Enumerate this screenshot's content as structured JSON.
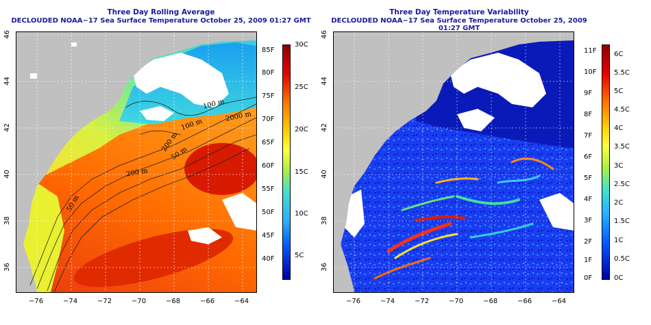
{
  "left_panel": {
    "title_line1": "Three Day Rolling Average",
    "title_line2": "DECLOUDED NOAA−17 Sea Surface Temperature October 25, 2009 01:27 GMT",
    "x_ticks": [
      "−76",
      "−74",
      "−72",
      "−70",
      "−68",
      "−66",
      "−64"
    ],
    "y_ticks": [
      "46",
      "44",
      "42",
      "40",
      "38",
      "36"
    ],
    "contour_labels": [
      "100 m",
      "100 m",
      "2000 m",
      "200 m",
      "200 m",
      "50 m",
      "50 m"
    ],
    "colorbar": {
      "fahrenheit_labels": [
        "85F",
        "80F",
        "75F",
        "70F",
        "65F",
        "60F",
        "55F",
        "50F",
        "45F",
        "40F"
      ],
      "celsius_labels": [
        "30C",
        "25C",
        "20C",
        "15C",
        "10C",
        "5C"
      ],
      "colors": [
        "#8b0000",
        "#e60000",
        "#ff7a00",
        "#ffd000",
        "#ffff40",
        "#b0f040",
        "#40e0d0",
        "#2ab0ff",
        "#0050ff",
        "#0000a0"
      ]
    }
  },
  "right_panel": {
    "title_line1": "Three Day Temperature Variability",
    "title_line2": "DECLOUDED NOAA−17 Sea Surface Temperature October 25, 2009 01:27 GMT",
    "x_ticks": [
      "−76",
      "−74",
      "−72",
      "−70",
      "−68",
      "−66",
      "−64"
    ],
    "y_ticks": [
      "46",
      "44",
      "42",
      "40",
      "38",
      "36"
    ],
    "colorbar": {
      "fahrenheit_labels": [
        "11F",
        "10F",
        "9F",
        "8F",
        "7F",
        "6F",
        "5F",
        "4F",
        "3F",
        "2F",
        "1F",
        "0F"
      ],
      "celsius_labels": [
        "6C",
        "5.5C",
        "5C",
        "4.5C",
        "4C",
        "3.5C",
        "3C",
        "2.5C",
        "2C",
        "1.5C",
        "1C",
        "0.5C",
        "0C"
      ],
      "colors": [
        "#8b0000",
        "#e60000",
        "#ff7a00",
        "#ffd000",
        "#ffff40",
        "#b0f040",
        "#40e0d0",
        "#2ab0ff",
        "#0050ff",
        "#0000a0"
      ]
    }
  },
  "colors": {
    "land": "#c0c0c0",
    "cloud_mask": "#ffffff",
    "title": "#1a1a9c"
  }
}
